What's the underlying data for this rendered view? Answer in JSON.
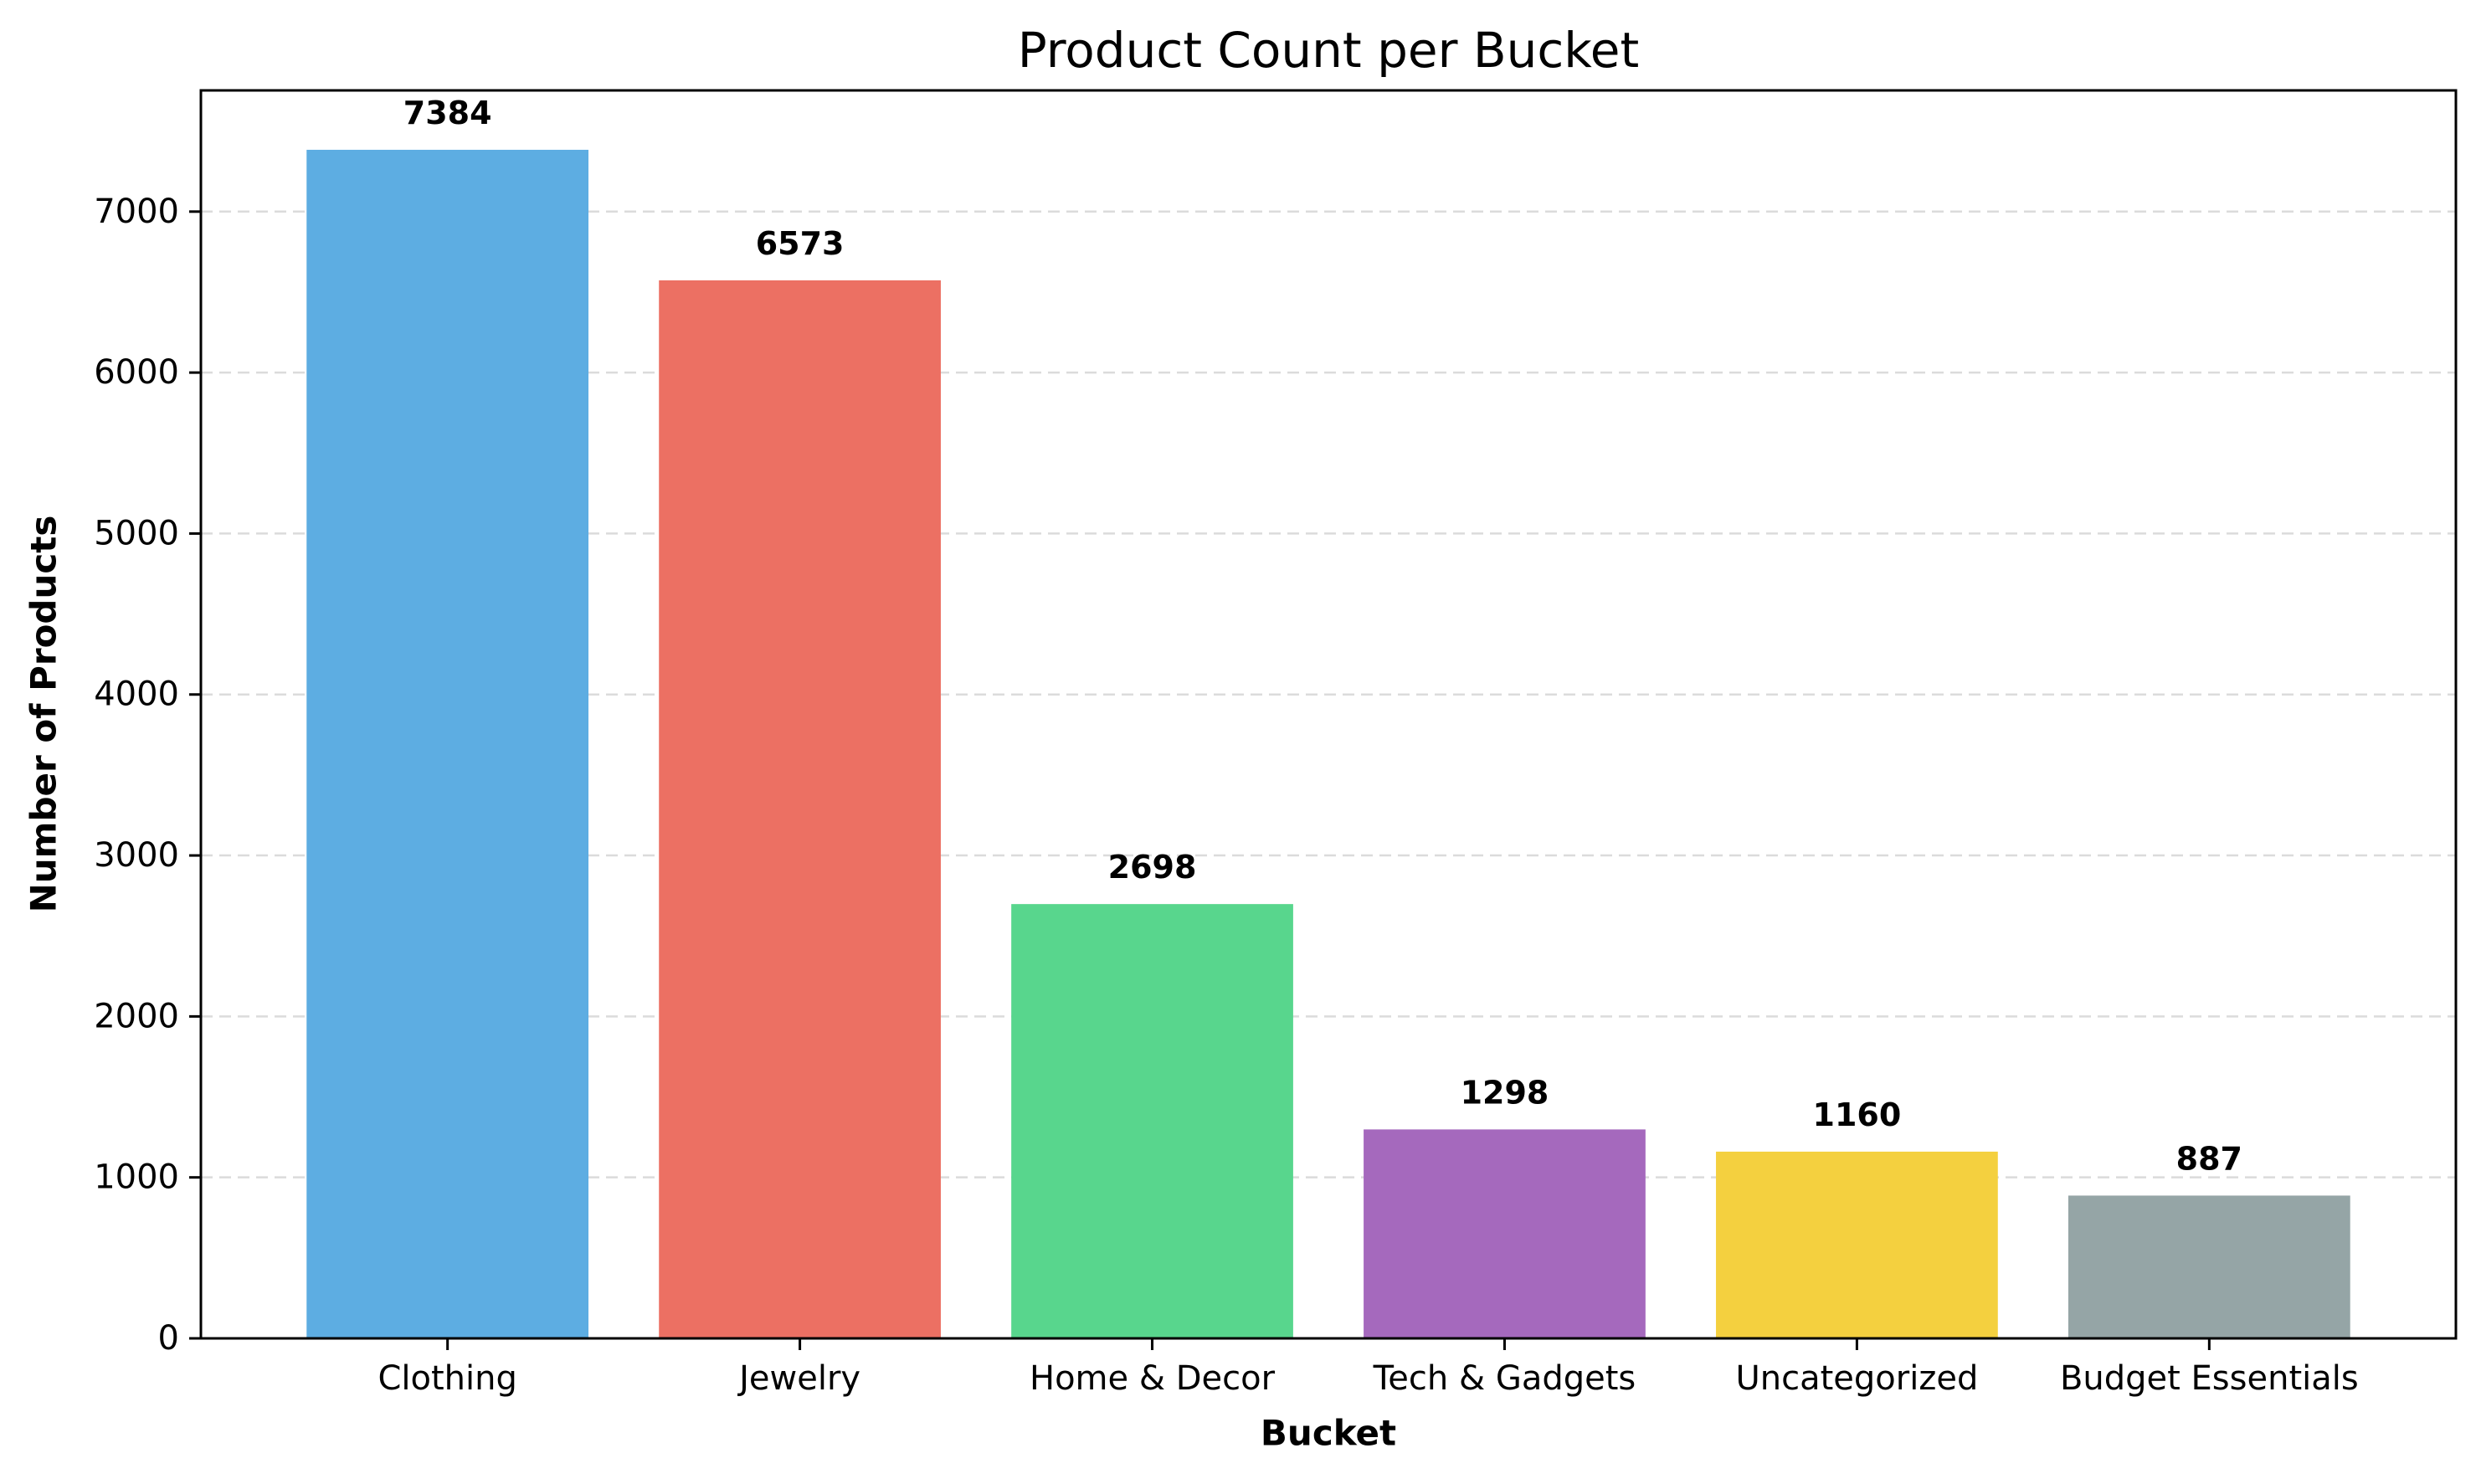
{
  "chart_data": {
    "type": "bar",
    "title": "Product Count per Bucket",
    "xlabel": "Bucket",
    "ylabel": "Number of Products",
    "categories": [
      "Clothing",
      "Jewelry",
      "Home & Decor",
      "Tech & Gadgets",
      "Uncategorized",
      "Budget Essentials"
    ],
    "values": [
      7384,
      6573,
      2698,
      1298,
      1160,
      887
    ],
    "value_labels": [
      "7384",
      "6573",
      "2698",
      "1298",
      "1160",
      "887"
    ],
    "colors": [
      "#5dade2",
      "#ec7063",
      "#58d68d",
      "#a569bd",
      "#f4d03f",
      "#95a5a6"
    ],
    "ylim": [
      0,
      7753
    ],
    "yticks": [
      0,
      1000,
      2000,
      3000,
      4000,
      5000,
      6000,
      7000
    ],
    "ytick_labels": [
      "0",
      "1000",
      "2000",
      "3000",
      "4000",
      "5000",
      "6000",
      "7000"
    ],
    "grid": "y-dashed",
    "legend": "none"
  }
}
